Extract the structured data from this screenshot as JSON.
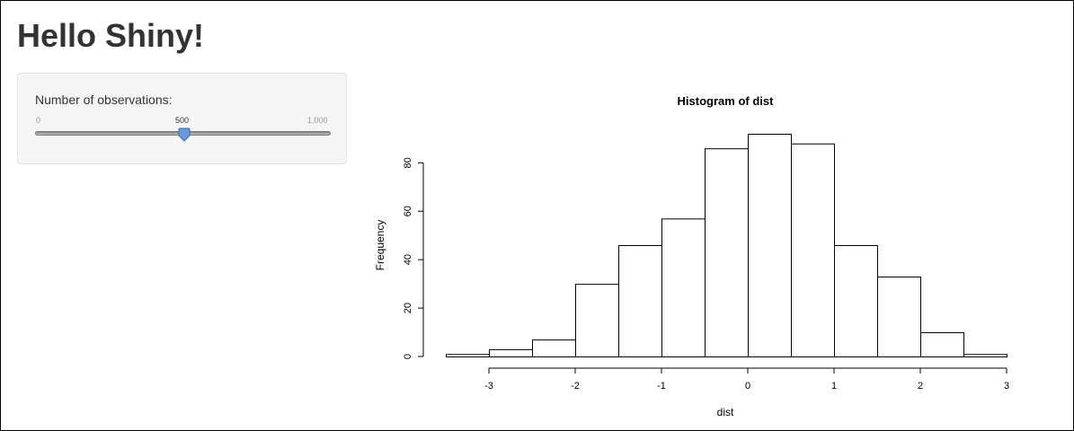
{
  "page": {
    "title": "Hello Shiny!"
  },
  "sidebar": {
    "slider": {
      "label": "Number of observations:",
      "min_label": "0",
      "max_label": "1,000",
      "value_label": "500",
      "min": 0,
      "max": 1000,
      "value": 500,
      "handle_color": "#6b9bd8"
    }
  },
  "chart_data": {
    "type": "bar",
    "title": "Histogram of dist",
    "xlabel": "dist",
    "ylabel": "Frequency",
    "bin_edges": [
      -3.5,
      -3.0,
      -2.5,
      -2.0,
      -1.5,
      -1.0,
      -0.5,
      0.0,
      0.5,
      1.0,
      1.5,
      2.0,
      2.5,
      3.0
    ],
    "values": [
      1,
      3,
      7,
      30,
      46,
      57,
      86,
      92,
      88,
      46,
      33,
      10,
      1
    ],
    "xlim": [
      -3.5,
      3.0
    ],
    "ylim": [
      0,
      92
    ],
    "x_ticks": [
      -3,
      -2,
      -1,
      0,
      1,
      2,
      3
    ],
    "x_tick_labels": [
      "-3",
      "-2",
      "-1",
      "0",
      "1",
      "2",
      "3"
    ],
    "y_ticks": [
      0,
      20,
      40,
      60,
      80
    ],
    "y_tick_labels": [
      "0",
      "20",
      "40",
      "60",
      "80"
    ],
    "bar_fill": "#ffffff",
    "bar_stroke": "#000000",
    "grid": false
  }
}
